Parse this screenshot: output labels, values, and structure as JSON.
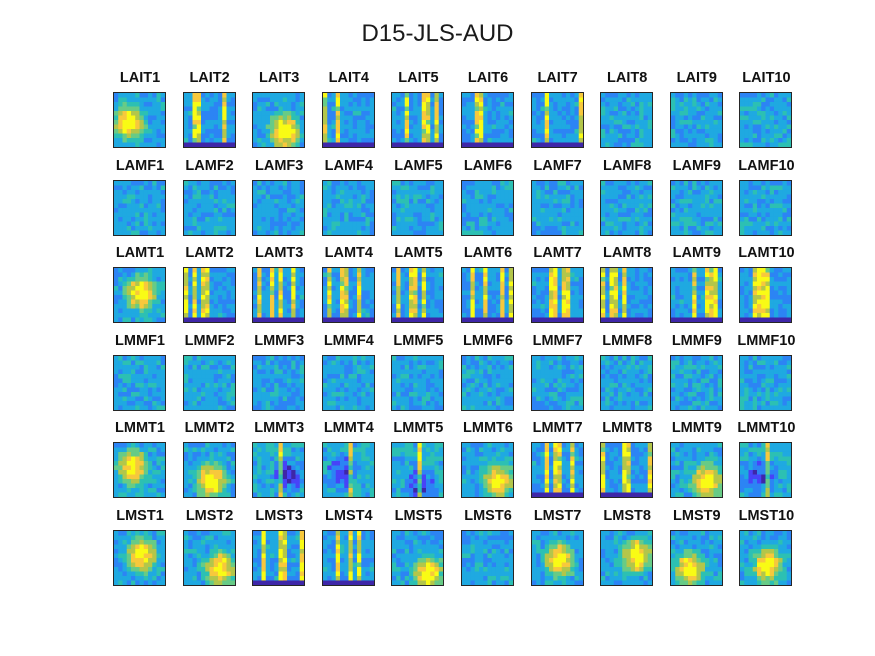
{
  "title": "D15-JLS-AUD",
  "colormap": [
    "#3e26a8",
    "#4743f8",
    "#2c84f4",
    "#1fa9e1",
    "#2cc0b3",
    "#67cb86",
    "#b3c64a",
    "#f7c83c",
    "#f9fb15"
  ],
  "chart_data": {
    "type": "heatmap",
    "title": "D15-JLS-AUD",
    "rows": [
      {
        "group": "LAIT",
        "panels": [
          {
            "label": "LAIT1",
            "pattern": "blob"
          },
          {
            "label": "LAIT2",
            "pattern": "stripes"
          },
          {
            "label": "LAIT3",
            "pattern": "blob"
          },
          {
            "label": "LAIT4",
            "pattern": "stripes"
          },
          {
            "label": "LAIT5",
            "pattern": "stripes"
          },
          {
            "label": "LAIT6",
            "pattern": "stripes"
          },
          {
            "label": "LAIT7",
            "pattern": "stripes"
          },
          {
            "label": "LAIT8",
            "pattern": "noise"
          },
          {
            "label": "LAIT9",
            "pattern": "noise"
          },
          {
            "label": "LAIT10",
            "pattern": "noise"
          }
        ]
      },
      {
        "group": "LAMF",
        "panels": [
          {
            "label": "LAMF1",
            "pattern": "noise"
          },
          {
            "label": "LAMF2",
            "pattern": "noise"
          },
          {
            "label": "LAMF3",
            "pattern": "noise"
          },
          {
            "label": "LAMF4",
            "pattern": "noise"
          },
          {
            "label": "LAMF5",
            "pattern": "noise"
          },
          {
            "label": "LAMF6",
            "pattern": "noise"
          },
          {
            "label": "LAMF7",
            "pattern": "noise"
          },
          {
            "label": "LAMF8",
            "pattern": "noise"
          },
          {
            "label": "LAMF9",
            "pattern": "noise"
          },
          {
            "label": "LAMF10",
            "pattern": "noise"
          }
        ]
      },
      {
        "group": "LAMT",
        "panels": [
          {
            "label": "LAMT1",
            "pattern": "blob"
          },
          {
            "label": "LAMT2",
            "pattern": "stripes"
          },
          {
            "label": "LAMT3",
            "pattern": "stripes"
          },
          {
            "label": "LAMT4",
            "pattern": "stripes"
          },
          {
            "label": "LAMT5",
            "pattern": "stripes"
          },
          {
            "label": "LAMT6",
            "pattern": "stripes"
          },
          {
            "label": "LAMT7",
            "pattern": "stripes"
          },
          {
            "label": "LAMT8",
            "pattern": "stripes"
          },
          {
            "label": "LAMT9",
            "pattern": "stripes"
          },
          {
            "label": "LAMT10",
            "pattern": "stripes"
          }
        ]
      },
      {
        "group": "LMMF",
        "panels": [
          {
            "label": "LMMF1",
            "pattern": "noise"
          },
          {
            "label": "LMMF2",
            "pattern": "noise"
          },
          {
            "label": "LMMF3",
            "pattern": "noise"
          },
          {
            "label": "LMMF4",
            "pattern": "noise"
          },
          {
            "label": "LMMF5",
            "pattern": "noise"
          },
          {
            "label": "LMMF6",
            "pattern": "noise"
          },
          {
            "label": "LMMF7",
            "pattern": "noise"
          },
          {
            "label": "LMMF8",
            "pattern": "noise"
          },
          {
            "label": "LMMF9",
            "pattern": "noise"
          },
          {
            "label": "LMMF10",
            "pattern": "noise"
          }
        ]
      },
      {
        "group": "LMMT",
        "panels": [
          {
            "label": "LMMT1",
            "pattern": "blob"
          },
          {
            "label": "LMMT2",
            "pattern": "blob"
          },
          {
            "label": "LMMT3",
            "pattern": "dark"
          },
          {
            "label": "LMMT4",
            "pattern": "dark"
          },
          {
            "label": "LMMT5",
            "pattern": "dark"
          },
          {
            "label": "LMMT6",
            "pattern": "blob"
          },
          {
            "label": "LMMT7",
            "pattern": "stripes"
          },
          {
            "label": "LMMT8",
            "pattern": "stripes"
          },
          {
            "label": "LMMT9",
            "pattern": "blob"
          },
          {
            "label": "LMMT10",
            "pattern": "dark"
          }
        ]
      },
      {
        "group": "LMST",
        "panels": [
          {
            "label": "LMST1",
            "pattern": "blob"
          },
          {
            "label": "LMST2",
            "pattern": "blob"
          },
          {
            "label": "LMST3",
            "pattern": "stripes"
          },
          {
            "label": "LMST4",
            "pattern": "stripes"
          },
          {
            "label": "LMST5",
            "pattern": "blob"
          },
          {
            "label": "LMST6",
            "pattern": "noise"
          },
          {
            "label": "LMST7",
            "pattern": "blob"
          },
          {
            "label": "LMST8",
            "pattern": "blob"
          },
          {
            "label": "LMST9",
            "pattern": "blob"
          },
          {
            "label": "LMST10",
            "pattern": "blob"
          }
        ]
      }
    ]
  }
}
